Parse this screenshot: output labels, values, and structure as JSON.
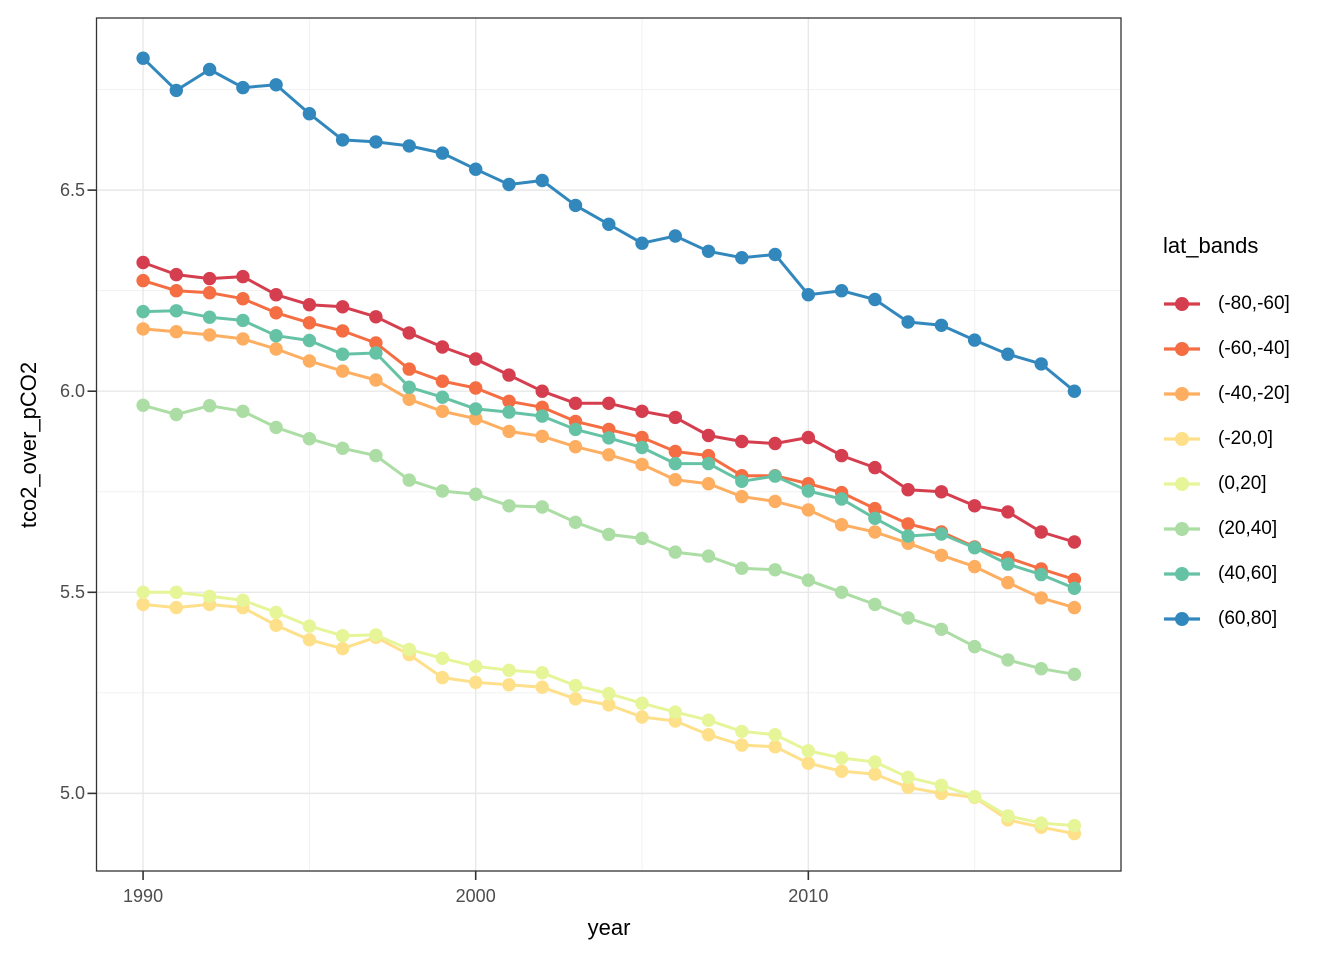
{
  "figure": {
    "x_axis_title": "year",
    "y_axis_title": "tco2_over_pCO2",
    "legend_title": "lat_bands"
  },
  "chart_data": {
    "type": "line",
    "title": "",
    "xlabel": "year",
    "ylabel": "tco2_over_pCO2",
    "legend_title": "lat_bands",
    "legend_position": "right",
    "grid": true,
    "marker": "filled-circle",
    "xlim": [
      1988.6,
      2019.4
    ],
    "ylim": [
      4.807,
      6.928
    ],
    "xticks": {
      "major": [
        1990,
        2000,
        2010
      ],
      "minor": [
        1995,
        2005,
        2015
      ],
      "labels": [
        "1990",
        "2000",
        "2010"
      ]
    },
    "yticks": {
      "major": [
        5.0,
        5.5,
        6.0,
        6.5
      ],
      "minor": [
        5.25,
        5.75,
        6.25,
        6.75
      ],
      "labels": [
        "5.0",
        "5.5",
        "6.0",
        "6.5"
      ]
    },
    "x": [
      1990,
      1991,
      1992,
      1993,
      1994,
      1995,
      1996,
      1997,
      1998,
      1999,
      2000,
      2001,
      2002,
      2003,
      2004,
      2005,
      2006,
      2007,
      2008,
      2009,
      2010,
      2011,
      2012,
      2013,
      2014,
      2015,
      2016,
      2017,
      2018
    ],
    "series": [
      {
        "name": "(-80,-60]",
        "color": "#d53e4f",
        "values": [
          6.32,
          6.29,
          6.28,
          6.285,
          6.24,
          6.215,
          6.21,
          6.185,
          6.145,
          6.11,
          6.08,
          6.04,
          6.0,
          5.97,
          5.97,
          5.95,
          5.935,
          5.89,
          5.875,
          5.87,
          5.885,
          5.84,
          5.81,
          5.755,
          5.75,
          5.715,
          5.7,
          5.65,
          5.625
        ]
      },
      {
        "name": "(-60,-40]",
        "color": "#f46d43",
        "values": [
          6.275,
          6.25,
          6.245,
          6.23,
          6.195,
          6.17,
          6.15,
          6.12,
          6.055,
          6.025,
          6.008,
          5.975,
          5.96,
          5.925,
          5.905,
          5.885,
          5.85,
          5.84,
          5.79,
          5.79,
          5.77,
          5.748,
          5.708,
          5.67,
          5.65,
          5.613,
          5.586,
          5.558,
          5.532
        ]
      },
      {
        "name": "(-40,-20]",
        "color": "#fdae61",
        "values": [
          6.155,
          6.148,
          6.14,
          6.13,
          6.105,
          6.075,
          6.05,
          6.028,
          5.98,
          5.95,
          5.932,
          5.9,
          5.888,
          5.862,
          5.842,
          5.818,
          5.78,
          5.77,
          5.738,
          5.726,
          5.705,
          5.668,
          5.65,
          5.622,
          5.592,
          5.564,
          5.524,
          5.486,
          5.462
        ]
      },
      {
        "name": "(-20,0]",
        "color": "#fee08b",
        "values": [
          5.47,
          5.462,
          5.47,
          5.462,
          5.418,
          5.382,
          5.36,
          5.388,
          5.345,
          5.288,
          5.276,
          5.27,
          5.264,
          5.235,
          5.22,
          5.19,
          5.18,
          5.146,
          5.12,
          5.116,
          5.075,
          5.055,
          5.048,
          5.015,
          5.0,
          4.99,
          4.934,
          4.916,
          4.9
        ]
      },
      {
        "name": "(0,20]",
        "color": "#e6f598",
        "values": [
          5.5,
          5.5,
          5.49,
          5.48,
          5.45,
          5.416,
          5.392,
          5.394,
          5.358,
          5.336,
          5.316,
          5.306,
          5.3,
          5.268,
          5.248,
          5.224,
          5.202,
          5.182,
          5.154,
          5.146,
          5.106,
          5.088,
          5.078,
          5.04,
          5.02,
          4.992,
          4.944,
          4.926,
          4.92
        ]
      },
      {
        "name": "(20,40]",
        "color": "#abdda4",
        "values": [
          5.965,
          5.942,
          5.964,
          5.95,
          5.91,
          5.882,
          5.858,
          5.84,
          5.779,
          5.752,
          5.744,
          5.715,
          5.712,
          5.674,
          5.644,
          5.634,
          5.6,
          5.59,
          5.56,
          5.556,
          5.53,
          5.5,
          5.47,
          5.436,
          5.408,
          5.365,
          5.332,
          5.31,
          5.296
        ]
      },
      {
        "name": "(40,60]",
        "color": "#66c2a5",
        "values": [
          6.198,
          6.2,
          6.184,
          6.176,
          6.138,
          6.126,
          6.092,
          6.095,
          6.01,
          5.985,
          5.956,
          5.948,
          5.938,
          5.905,
          5.884,
          5.86,
          5.82,
          5.82,
          5.776,
          5.789,
          5.752,
          5.732,
          5.684,
          5.64,
          5.645,
          5.611,
          5.57,
          5.544,
          5.51
        ]
      },
      {
        "name": "(60,80]",
        "color": "#3288bd",
        "values": [
          6.828,
          6.748,
          6.8,
          6.755,
          6.762,
          6.69,
          6.625,
          6.62,
          6.61,
          6.592,
          6.552,
          6.514,
          6.524,
          6.462,
          6.415,
          6.368,
          6.386,
          6.348,
          6.332,
          6.34,
          6.24,
          6.25,
          6.228,
          6.172,
          6.164,
          6.127,
          6.092,
          6.068,
          6.0
        ]
      }
    ],
    "theme": {
      "panel_background": "#ffffff",
      "panel_border": "#333333",
      "grid_major": "#e8e8e8",
      "grid_minor": "#f1f1f1",
      "tick_color": "#333333",
      "tick_label_color": "#4d4d4d",
      "axis_title_color": "#000000"
    }
  }
}
